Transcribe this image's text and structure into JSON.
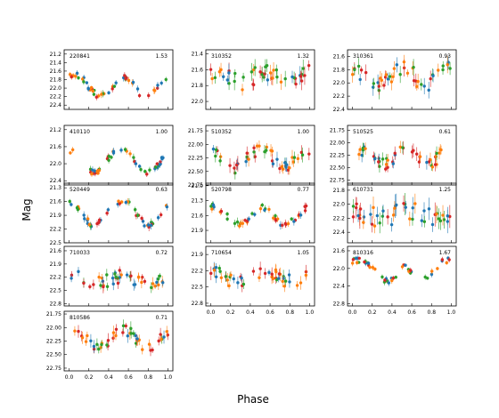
{
  "xlabel": "Phase",
  "ylabel": "Mag",
  "colors": [
    "#1f77b4",
    "#ff7f0e",
    "#2ca02c",
    "#d62728",
    "#9467bd",
    "#8c564b"
  ],
  "x_ticks": [
    "0.0",
    "0.2",
    "0.4",
    "0.6",
    "0.8",
    "1.0"
  ],
  "chart_data": [
    {
      "type": "scatter",
      "id": "220841",
      "period": "1.53",
      "ylim": [
        22.5,
        21.1
      ],
      "yticks": [
        "21.2",
        "21.4",
        "21.6",
        "21.8",
        "22.0",
        "22.2",
        "22.4"
      ],
      "mean": 21.95,
      "amp": 0.48,
      "scatter": 0.07,
      "err": 0.06,
      "minima": [
        0.32,
        0.78
      ]
    },
    {
      "type": "scatter",
      "id": "310352",
      "period": "1.32",
      "ylim": [
        22.1,
        21.35
      ],
      "yticks": [
        "21.4",
        "21.6",
        "21.8",
        "22.0"
      ],
      "mean": 21.7,
      "amp": 0.1,
      "scatter": 0.12,
      "err": 0.08,
      "minima": [
        0.3,
        0.8
      ]
    },
    {
      "type": "scatter",
      "id": "310361",
      "period": "0.93",
      "ylim": [
        22.4,
        21.5
      ],
      "yticks": [
        "21.6",
        "21.8",
        "22.0",
        "22.2",
        "22.4"
      ],
      "mean": 21.9,
      "amp": 0.18,
      "scatter": 0.13,
      "err": 0.09,
      "minima": [
        0.25,
        0.75
      ]
    },
    {
      "type": "scatter",
      "id": "410110",
      "period": "1.00",
      "ylim": [
        22.5,
        21.1
      ],
      "yticks": [
        "21.2",
        "21.6",
        "22.0",
        "22.4"
      ],
      "mean": 21.95,
      "amp": 0.5,
      "scatter": 0.06,
      "err": 0.06,
      "minima": [
        0.25,
        0.8
      ]
    },
    {
      "type": "scatter",
      "id": "510352",
      "period": "1.00",
      "ylim": [
        22.75,
        21.65
      ],
      "yticks": [
        "21.75",
        "22.00",
        "22.25",
        "22.50",
        "22.75"
      ],
      "mean": 22.25,
      "amp": 0.35,
      "scatter": 0.12,
      "err": 0.1,
      "minima": [
        0.25,
        0.75
      ]
    },
    {
      "type": "scatter",
      "id": "510525",
      "period": "0.61",
      "ylim": [
        22.85,
        21.65
      ],
      "yticks": [
        "21.75",
        "22.00",
        "22.25",
        "22.50",
        "22.75"
      ],
      "mean": 22.28,
      "amp": 0.3,
      "scatter": 0.12,
      "err": 0.1,
      "minima": [
        0.3,
        0.75
      ]
    },
    {
      "type": "scatter",
      "id": "520449",
      "period": "0.63",
      "ylim": [
        22.5,
        21.2
      ],
      "yticks": [
        "21.3",
        "21.6",
        "21.9",
        "22.2",
        "22.5"
      ],
      "mean": 21.85,
      "amp": 0.5,
      "scatter": 0.06,
      "err": 0.06,
      "minima": [
        0.25,
        0.8
      ]
    },
    {
      "type": "scatter",
      "id": "520798",
      "period": "0.77",
      "ylim": [
        22.15,
        20.95
      ],
      "yticks": [
        "21.0",
        "21.3",
        "21.6",
        "21.9"
      ],
      "mean": 21.6,
      "amp": 0.35,
      "scatter": 0.07,
      "err": 0.06,
      "minima": [
        0.28,
        0.75
      ]
    },
    {
      "type": "scatter",
      "id": "610731",
      "period": "1.25",
      "ylim": [
        22.55,
        21.7
      ],
      "yticks": [
        "21.8",
        "22.0",
        "22.2",
        "22.4"
      ],
      "mean": 22.15,
      "amp": 0.08,
      "scatter": 0.14,
      "err": 0.12,
      "minima": [
        0.3,
        0.8
      ]
    },
    {
      "type": "scatter",
      "id": "710033",
      "period": "0.72",
      "ylim": [
        22.85,
        21.5
      ],
      "yticks": [
        "21.6",
        "21.9",
        "22.2",
        "22.5",
        "22.8"
      ],
      "mean": 22.25,
      "amp": 0.15,
      "scatter": 0.15,
      "err": 0.1,
      "minima": [
        0.3,
        0.8
      ]
    },
    {
      "type": "scatter",
      "id": "710654",
      "period": "1.05",
      "ylim": [
        22.85,
        21.75
      ],
      "yticks": [
        "21.9",
        "22.2",
        "22.5",
        "22.8"
      ],
      "mean": 22.3,
      "amp": 0.18,
      "scatter": 0.12,
      "err": 0.09,
      "minima": [
        0.25,
        0.8
      ]
    },
    {
      "type": "scatter",
      "id": "810316",
      "period": "1.67",
      "ylim": [
        22.85,
        21.5
      ],
      "yticks": [
        "21.6",
        "22.0",
        "22.4",
        "22.8"
      ],
      "mean": 22.05,
      "amp": 0.45,
      "scatter": 0.06,
      "err": 0.05,
      "minima": [
        0.35,
        0.7
      ]
    },
    {
      "type": "scatter",
      "id": "810586",
      "period": "0.71",
      "ylim": [
        22.8,
        21.7
      ],
      "yticks": [
        "21.75",
        "22.00",
        "22.25",
        "22.50",
        "22.75"
      ],
      "mean": 22.2,
      "amp": 0.3,
      "scatter": 0.1,
      "err": 0.09,
      "minima": [
        0.3,
        0.8
      ]
    }
  ]
}
